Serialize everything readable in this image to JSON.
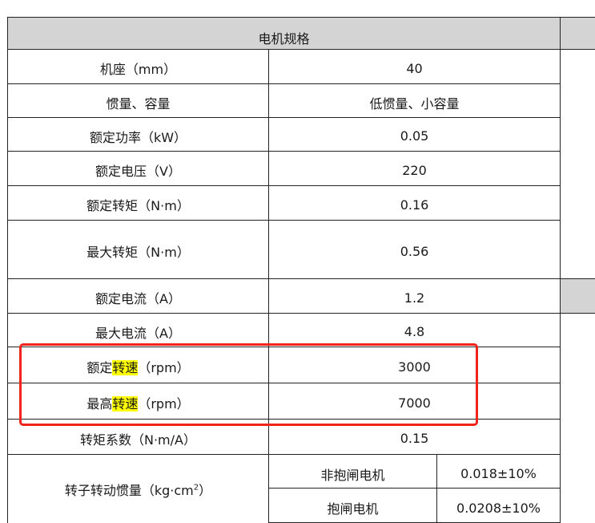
{
  "header": {
    "title": "电机规格"
  },
  "rows": [
    {
      "label": "机座（mm）",
      "value": "40"
    },
    {
      "label": "惯量、容量",
      "value": "低惯量、小容量"
    },
    {
      "label": "额定功率（kW）",
      "value": "0.05"
    },
    {
      "label": "额定电压（V）",
      "value": "220"
    },
    {
      "label": "额定转矩（N·m）",
      "value": "0.16"
    },
    {
      "label": "最大转矩（N·m）",
      "value": "0.56"
    },
    {
      "label": "额定电流（A）",
      "value": "1.2"
    },
    {
      "label": "最大电流（A）",
      "value": "4.8"
    },
    {
      "label_pre": "额定",
      "label_hl": "转速",
      "label_post": "（rpm）",
      "value": "3000"
    },
    {
      "label_pre": "最高",
      "label_hl": "转速",
      "label_post": "（rpm）",
      "value": "7000"
    },
    {
      "label": "转矩系数（N·m/A）",
      "value": "0.15"
    }
  ],
  "inertia": {
    "label": "转子转动惯量（kg·cm",
    "label_sup": "2",
    "label_end": "）",
    "sub": [
      {
        "label": "非抱闸电机",
        "value": "0.018±10%"
      },
      {
        "label": "抱闸电机",
        "value": "0.0208±10%"
      }
    ]
  },
  "colors": {
    "highlight": "#ffff00",
    "annotation_box": "#f0241b",
    "header_bg": "#d4d4d4"
  }
}
